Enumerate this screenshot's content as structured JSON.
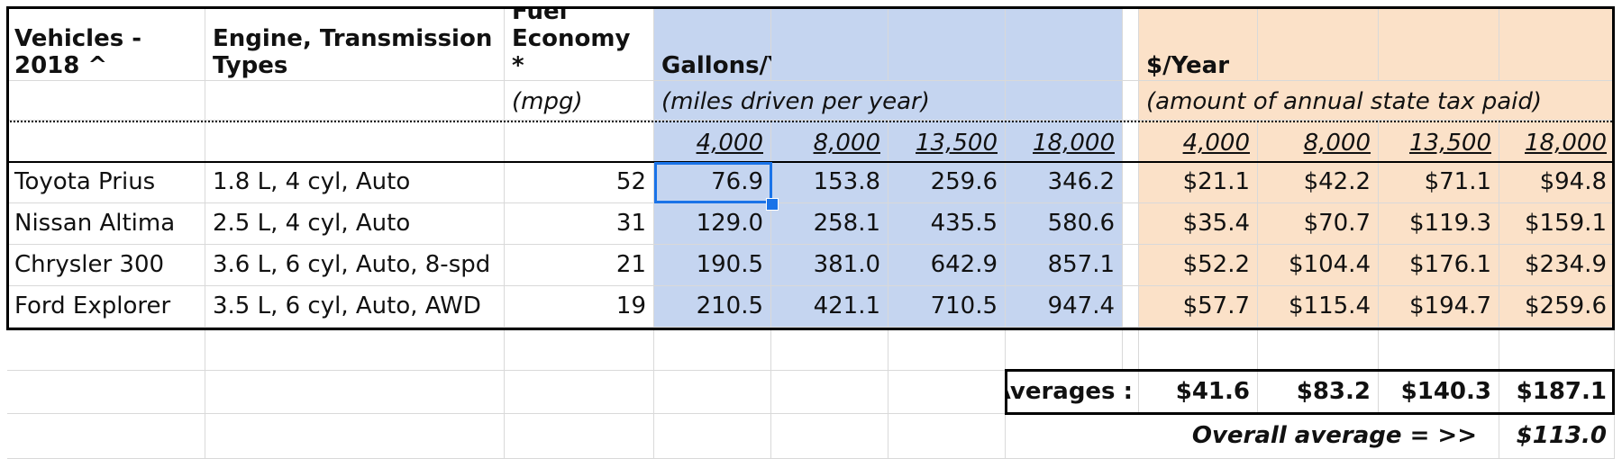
{
  "headers": {
    "vehicles": "Vehicles - 2018 ^",
    "engine": "Engine, Transmission Types",
    "fuel": "Fuel Economy *",
    "gallons": "Gallons/Year",
    "dollars": "$/Year",
    "mpg": "(mpg)",
    "miles_note": "(miles driven per year)",
    "tax_note": "(amount of annual state tax paid)",
    "miles": [
      "4,000",
      "8,000",
      "13,500",
      "18,000"
    ]
  },
  "rows": [
    {
      "vehicle": "Toyota Prius",
      "engine": "1.8 L, 4 cyl, Auto",
      "mpg": "52",
      "gallons": [
        "76.9",
        "153.8",
        "259.6",
        "346.2"
      ],
      "dollars": [
        "$21.1",
        "$42.2",
        "$71.1",
        "$94.8"
      ]
    },
    {
      "vehicle": "Nissan Altima",
      "engine": "2.5 L, 4 cyl, Auto",
      "mpg": "31",
      "gallons": [
        "129.0",
        "258.1",
        "435.5",
        "580.6"
      ],
      "dollars": [
        "$35.4",
        "$70.7",
        "$119.3",
        "$159.1"
      ]
    },
    {
      "vehicle": "Chrysler 300",
      "engine": "3.6 L, 6 cyl, Auto, 8-spd",
      "mpg": "21",
      "gallons": [
        "190.5",
        "381.0",
        "642.9",
        "857.1"
      ],
      "dollars": [
        "$52.2",
        "$104.4",
        "$176.1",
        "$234.9"
      ]
    },
    {
      "vehicle": "Ford Explorer",
      "engine": "3.5 L, 6 cyl, Auto, AWD",
      "mpg": "19",
      "gallons": [
        "210.5",
        "421.1",
        "710.5",
        "947.4"
      ],
      "dollars": [
        "$57.7",
        "$115.4",
        "$194.7",
        "$259.6"
      ]
    }
  ],
  "averages": {
    "label": "Averages :",
    "values": [
      "$41.6",
      "$83.2",
      "$140.3",
      "$187.1"
    ]
  },
  "overall": {
    "label": "Overall average = >>",
    "value": "$113.0"
  }
}
